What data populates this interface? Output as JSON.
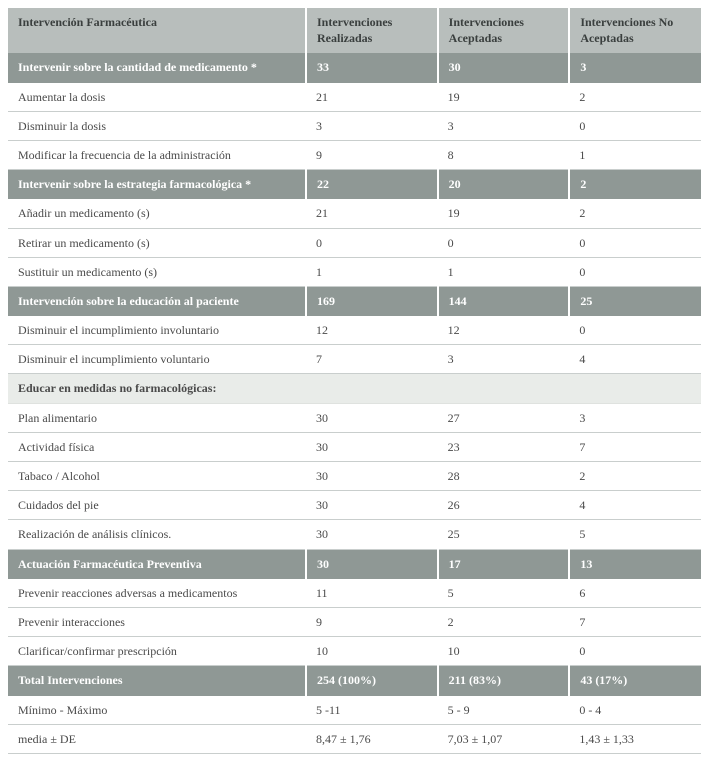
{
  "columns": {
    "c1": "Intervención Farmacéutica",
    "c2": "Intervenciones Realizadas",
    "c3": "Intervenciones Aceptadas",
    "c4": "Intervenciones No Aceptadas"
  },
  "rows": [
    {
      "type": "section",
      "c1": "Intervenir sobre la cantidad de medicamento *",
      "c2": "33",
      "c3": "30",
      "c4": "3"
    },
    {
      "type": "data",
      "c1": "Aumentar la dosis",
      "c2": "21",
      "c3": "19",
      "c4": "2"
    },
    {
      "type": "data",
      "c1": "Disminuir la dosis",
      "c2": "3",
      "c3": "3",
      "c4": "0"
    },
    {
      "type": "data",
      "c1": "Modificar la frecuencia de la administración",
      "c2": "9",
      "c3": "8",
      "c4": "1"
    },
    {
      "type": "section",
      "c1": "Intervenir sobre la estrategia farmacológica *",
      "c2": "22",
      "c3": "20",
      "c4": "2"
    },
    {
      "type": "data",
      "c1": "Añadir un medicamento (s)",
      "c2": "21",
      "c3": "19",
      "c4": "2"
    },
    {
      "type": "data",
      "c1": "Retirar un medicamento (s)",
      "c2": "0",
      "c3": "0",
      "c4": "0"
    },
    {
      "type": "data",
      "c1": "Sustituir un medicamento (s)",
      "c2": "1",
      "c3": "1",
      "c4": "0"
    },
    {
      "type": "section",
      "c1": "Intervención sobre la educación al paciente",
      "c2": "169",
      "c3": "144",
      "c4": "25"
    },
    {
      "type": "data",
      "c1": "Disminuir el incumplimiento involuntario",
      "c2": "12",
      "c3": "12",
      "c4": "0"
    },
    {
      "type": "data",
      "c1": "Disminuir el incumplimiento voluntario",
      "c2": "7",
      "c3": "3",
      "c4": "4"
    },
    {
      "type": "sub",
      "c1": "Educar en medidas no farmacológicas:",
      "c2": "",
      "c3": "",
      "c4": ""
    },
    {
      "type": "data",
      "c1": "Plan alimentario",
      "c2": "30",
      "c3": "27",
      "c4": "3"
    },
    {
      "type": "data",
      "c1": "Actividad física",
      "c2": "30",
      "c3": "23",
      "c4": "7"
    },
    {
      "type": "data",
      "c1": "Tabaco / Alcohol",
      "c2": "30",
      "c3": "28",
      "c4": "2"
    },
    {
      "type": "data",
      "c1": "Cuidados del pie",
      "c2": "30",
      "c3": "26",
      "c4": "4"
    },
    {
      "type": "data",
      "c1": "Realización de análisis clínicos.",
      "c2": "30",
      "c3": "25",
      "c4": "5"
    },
    {
      "type": "section",
      "c1": "Actuación Farmacéutica Preventiva",
      "c2": "30",
      "c3": "17",
      "c4": "13"
    },
    {
      "type": "data",
      "c1": "Prevenir reacciones adversas a medicamentos",
      "c2": "11",
      "c3": "5",
      "c4": "6"
    },
    {
      "type": "data",
      "c1": "Prevenir interacciones",
      "c2": "9",
      "c3": "2",
      "c4": "7"
    },
    {
      "type": "data",
      "c1": "Clarificar/confirmar prescripción",
      "c2": "10",
      "c3": "10",
      "c4": "0"
    },
    {
      "type": "section",
      "c1": "Total Intervenciones",
      "c2": "254 (100%)",
      "c3": "211 (83%)",
      "c4": "43 (17%)"
    },
    {
      "type": "data",
      "c1": "Mínimo - Máximo",
      "c2": "5 -11",
      "c3": "5 - 9",
      "c4": "0 - 4"
    },
    {
      "type": "data",
      "c1": "media ± DE",
      "c2": "8,47 ± 1,76",
      "c3": "7,03 ± 1,07",
      "c4": "1,43 ± 1,33"
    }
  ]
}
